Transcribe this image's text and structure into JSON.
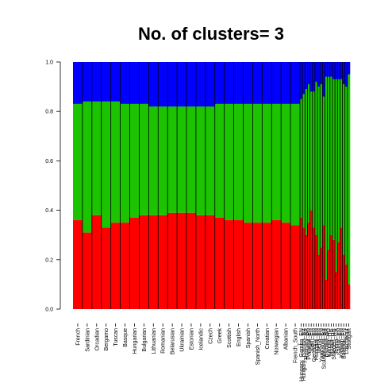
{
  "chart_data": {
    "type": "bar",
    "stacked": true,
    "title": "No. of clusters= 3",
    "xlabel": "",
    "ylabel": "",
    "ylim": [
      0,
      1
    ],
    "yticks": [
      "0.0",
      "0.2",
      "0.4",
      "0.6",
      "0.8",
      "1.0"
    ],
    "colors": {
      "cluster_1": "#ff0000",
      "cluster_2": "#1cc300",
      "cluster_3": "#0000ff"
    },
    "categories": [
      "French",
      "Sardinian",
      "Orcadian",
      "Bergamo",
      "Tuscan",
      "Basque",
      "Hungarian",
      "Bulgarian",
      "Lithuanian",
      "Romanian",
      "Belarusian",
      "Ukrainian",
      "Estonian",
      "Icelandic",
      "Czech",
      "Greek",
      "Scottish",
      "English",
      "Spanish",
      "Spanish_North",
      "Croatian",
      "Norwegian",
      "Albanian",
      "French_South",
      "Hungary_Gamba_EN",
      "Hungary_Gamba_BA",
      "Hungary_BA",
      "Portugal_EN",
      "Spain_EN",
      "Germany_EN",
      "Hungary_EN",
      "Iberia_EN",
      "Yamnaya_EN",
      "Scandinavia_BA",
      "Estonia_BA",
      "Karelia_HG",
      "Motala_HG",
      "Sweden_HG",
      "Iberia_CA",
      "SamiIr_EN",
      "Kazakh_EN",
      "Baalbek_EN",
      "Loschbour",
      "Stuttgart"
    ],
    "series": [
      {
        "values": [
          0.36,
          0.31,
          0.38,
          0.33,
          0.35,
          0.35,
          0.37,
          0.38,
          0.38,
          0.38,
          0.39,
          0.39,
          0.39,
          0.38,
          0.38,
          0.37,
          0.36,
          0.36,
          0.35,
          0.35,
          0.35,
          0.36,
          0.35,
          0.34,
          0.37,
          0.33,
          0.3,
          0.35,
          0.4,
          0.33,
          0.3,
          0.22,
          0.25,
          0.34,
          0.12,
          0.24,
          0.3,
          0.28,
          0.15,
          0.27,
          0.33,
          0.22,
          0.18,
          0.1
        ]
      },
      {
        "values": [
          0.47,
          0.53,
          0.46,
          0.51,
          0.49,
          0.48,
          0.46,
          0.45,
          0.44,
          0.44,
          0.43,
          0.43,
          0.43,
          0.44,
          0.44,
          0.46,
          0.47,
          0.47,
          0.48,
          0.48,
          0.48,
          0.47,
          0.48,
          0.49,
          0.48,
          0.54,
          0.59,
          0.56,
          0.48,
          0.55,
          0.62,
          0.68,
          0.66,
          0.52,
          0.82,
          0.7,
          0.64,
          0.65,
          0.78,
          0.66,
          0.6,
          0.69,
          0.72,
          0.85
        ]
      },
      {
        "values": [
          0.17,
          0.16,
          0.16,
          0.16,
          0.16,
          0.17,
          0.17,
          0.17,
          0.18,
          0.18,
          0.18,
          0.18,
          0.18,
          0.18,
          0.18,
          0.17,
          0.17,
          0.17,
          0.17,
          0.17,
          0.17,
          0.17,
          0.17,
          0.17,
          0.15,
          0.13,
          0.11,
          0.09,
          0.12,
          0.12,
          0.08,
          0.1,
          0.09,
          0.14,
          0.06,
          0.06,
          0.06,
          0.07,
          0.07,
          0.07,
          0.07,
          0.09,
          0.1,
          0.05
        ]
      }
    ]
  }
}
